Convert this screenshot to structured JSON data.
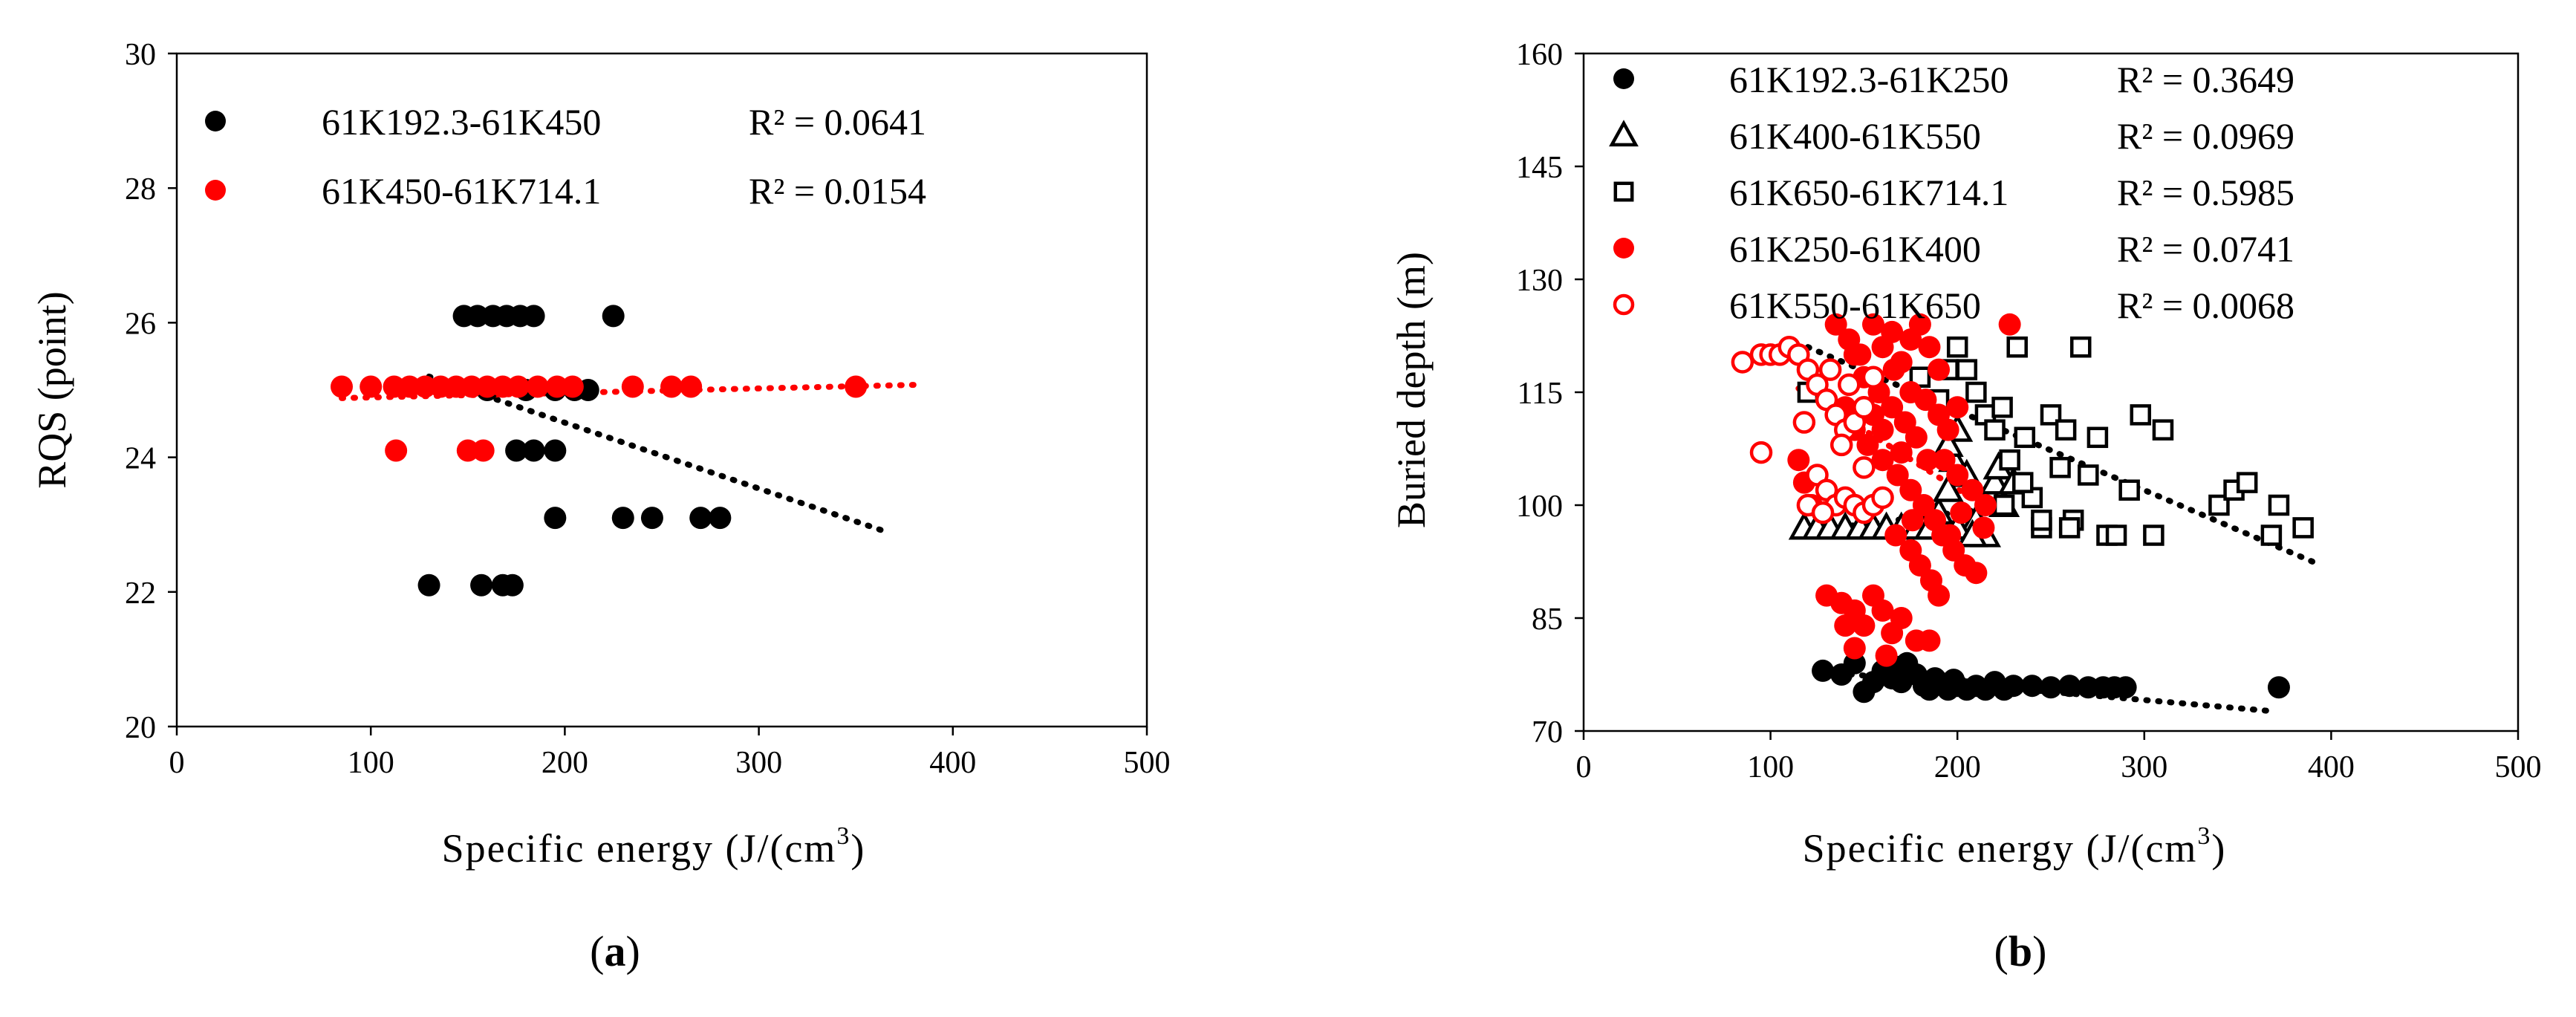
{
  "chart_data": [
    {
      "type": "scatter",
      "panel": "a",
      "caption_label": "a",
      "xlabel": "Specific energy (J/(cm",
      "xlabel_sup": "3",
      "xlabel_close": ")",
      "ylabel": "RQS (point)",
      "xlim": [
        0,
        500
      ],
      "ylim": [
        20,
        30
      ],
      "xticks": [
        0,
        100,
        200,
        300,
        400,
        500
      ],
      "yticks": [
        20,
        22,
        24,
        26,
        28,
        30
      ],
      "legend_position": "top-left",
      "series": [
        {
          "name": "61K192.3-61K450",
          "r2_label": "R² = 0.0641",
          "color": "#000000",
          "marker": "filled-circle",
          "trend": [
            [
              130,
              25.2
            ],
            [
              365,
              22.9
            ]
          ],
          "points": [
            [
              130,
              22.1
            ],
            [
              157,
              22.1
            ],
            [
              168,
              22.1
            ],
            [
              173,
              22.1
            ],
            [
              148,
              26.1
            ],
            [
              155,
              26.1
            ],
            [
              163,
              26.1
            ],
            [
              170,
              26.1
            ],
            [
              177,
              26.1
            ],
            [
              184,
              26.1
            ],
            [
              225,
              26.1
            ],
            [
              160,
              25.0
            ],
            [
              180,
              25.0
            ],
            [
              195,
              25.0
            ],
            [
              205,
              25.0
            ],
            [
              212,
              25.0
            ],
            [
              175,
              24.1
            ],
            [
              184,
              24.1
            ],
            [
              195,
              24.1
            ],
            [
              195,
              23.1
            ],
            [
              230,
              23.1
            ],
            [
              245,
              23.1
            ],
            [
              270,
              23.1
            ],
            [
              280,
              23.1
            ]
          ]
        },
        {
          "name": "61K450-61K714.1",
          "r2_label": "R² = 0.0154",
          "color": "#ff0000",
          "marker": "filled-circle",
          "trend": [
            [
              85,
              24.88
            ],
            [
              385,
              25.08
            ]
          ],
          "points": [
            [
              85,
              25.05
            ],
            [
              100,
              25.05
            ],
            [
              112,
              25.05
            ],
            [
              120,
              25.05
            ],
            [
              128,
              25.05
            ],
            [
              136,
              25.05
            ],
            [
              144,
              25.05
            ],
            [
              152,
              25.05
            ],
            [
              160,
              25.05
            ],
            [
              168,
              25.05
            ],
            [
              176,
              25.05
            ],
            [
              186,
              25.05
            ],
            [
              196,
              25.05
            ],
            [
              204,
              25.05
            ],
            [
              235,
              25.05
            ],
            [
              255,
              25.05
            ],
            [
              265,
              25.05
            ],
            [
              350,
              25.05
            ],
            [
              113,
              24.1
            ],
            [
              150,
              24.1
            ],
            [
              158,
              24.1
            ]
          ]
        }
      ]
    },
    {
      "type": "scatter",
      "panel": "b",
      "caption_label": "b",
      "xlabel": "Specific energy (J/(cm",
      "xlabel_sup": "3",
      "xlabel_close": ")",
      "ylabel": "Buried depth (m)",
      "xlim": [
        0,
        500
      ],
      "ylim": [
        70,
        160
      ],
      "xticks": [
        0,
        100,
        200,
        300,
        400,
        500
      ],
      "yticks": [
        70,
        85,
        100,
        115,
        130,
        145,
        160
      ],
      "legend_position": "top-left",
      "series": [
        {
          "name": "61K192.3-61K250",
          "r2_label": "R² = 0.3649",
          "color": "#000000",
          "marker": "filled-circle",
          "trend": [
            [
              130,
              77.8
            ],
            [
              370,
              72.6
            ]
          ],
          "points": [
            [
              128,
              78
            ],
            [
              138,
              77.5
            ],
            [
              145,
              79
            ],
            [
              150,
              75.2
            ],
            [
              155,
              76.5
            ],
            [
              160,
              78
            ],
            [
              165,
              77
            ],
            [
              170,
              76.5
            ],
            [
              173,
              79
            ],
            [
              178,
              77.5
            ],
            [
              182,
              76
            ],
            [
              185,
              75.5
            ],
            [
              190,
              76.5
            ],
            [
              195,
              75.5
            ],
            [
              200,
              76
            ],
            [
              205,
              75.5
            ],
            [
              210,
              76
            ],
            [
              215,
              75.5
            ],
            [
              220,
              76.5
            ],
            [
              225,
              75.5
            ],
            [
              230,
              76
            ],
            [
              240,
              76
            ],
            [
              250,
              75.8
            ],
            [
              260,
              76
            ],
            [
              270,
              75.8
            ],
            [
              278,
              75.8
            ],
            [
              284,
              75.8
            ],
            [
              290,
              75.8
            ],
            [
              372,
              75.8
            ],
            [
              168,
              78.5
            ],
            [
              188,
              77
            ],
            [
              198,
              76.8
            ]
          ]
        },
        {
          "name": "61K400-61K550",
          "r2_label": "R² = 0.0969",
          "color": "#000000",
          "marker": "open-triangle",
          "trend": [
            [
              118,
              96.5
            ],
            [
              215,
              99.5
            ]
          ],
          "points": [
            [
              118,
              97
            ],
            [
              125,
              97
            ],
            [
              132,
              97
            ],
            [
              140,
              97
            ],
            [
              148,
              97
            ],
            [
              155,
              97
            ],
            [
              162,
              97
            ],
            [
              170,
              97
            ],
            [
              178,
              97
            ],
            [
              185,
              97
            ],
            [
              190,
              99
            ],
            [
              195,
              102
            ],
            [
              198,
              106
            ],
            [
              200,
              110
            ],
            [
              205,
              104
            ],
            [
              210,
              98
            ],
            [
              215,
              96
            ],
            [
              218,
              101
            ],
            [
              220,
              103
            ],
            [
              225,
              100
            ],
            [
              222,
              105
            ],
            [
              230,
              103
            ],
            [
              195,
              108
            ],
            [
              200,
              97
            ],
            [
              208,
              96
            ]
          ]
        },
        {
          "name": "61K650-61K714.1",
          "r2_label": "R² = 0.5985",
          "color": "#000000",
          "marker": "open-square",
          "trend": [
            [
              120,
              121
            ],
            [
              390,
              92.5
            ]
          ],
          "points": [
            [
              120,
              115
            ],
            [
              180,
              117
            ],
            [
              190,
              114
            ],
            [
              195,
              118
            ],
            [
              200,
              121
            ],
            [
              205,
              118
            ],
            [
              210,
              115
            ],
            [
              215,
              112
            ],
            [
              220,
              110
            ],
            [
              224,
              113
            ],
            [
              228,
              106
            ],
            [
              232,
              121
            ],
            [
              236,
              109
            ],
            [
              240,
              101
            ],
            [
              245,
              97
            ],
            [
              250,
              112
            ],
            [
              255,
              105
            ],
            [
              258,
              110
            ],
            [
              262,
              98
            ],
            [
              266,
              121
            ],
            [
              270,
              104
            ],
            [
              275,
              109
            ],
            [
              280,
              96
            ],
            [
              285,
              96
            ],
            [
              292,
              102
            ],
            [
              298,
              112
            ],
            [
              305,
              96
            ],
            [
              310,
              110
            ],
            [
              340,
              100
            ],
            [
              348,
              102
            ],
            [
              355,
              103
            ],
            [
              368,
              96
            ],
            [
              372,
              100
            ],
            [
              385,
              97
            ],
            [
              225,
              100
            ],
            [
              245,
              98
            ],
            [
              260,
              97
            ],
            [
              235,
              103
            ]
          ]
        },
        {
          "name": "61K250-61K400",
          "r2_label": "R² = 0.0741",
          "color": "#ff0000",
          "marker": "filled-circle",
          "trend": [],
          "points": [
            [
              135,
              124
            ],
            [
              142,
              122
            ],
            [
              148,
              120
            ],
            [
              155,
              124
            ],
            [
              160,
              121
            ],
            [
              165,
              123
            ],
            [
              170,
              119
            ],
            [
              175,
              122
            ],
            [
              180,
              124
            ],
            [
              185,
              121
            ],
            [
              190,
              118
            ],
            [
              150,
              117
            ],
            [
              158,
              115
            ],
            [
              165,
              113
            ],
            [
              172,
              111
            ],
            [
              178,
              109
            ],
            [
              184,
              106
            ],
            [
              190,
              112
            ],
            [
              195,
              110
            ],
            [
              200,
              113
            ],
            [
              140,
              113
            ],
            [
              145,
              110
            ],
            [
              152,
              108
            ],
            [
              160,
              106
            ],
            [
              168,
              104
            ],
            [
              175,
              102
            ],
            [
              182,
              100
            ],
            [
              188,
              98
            ],
            [
              192,
              96
            ],
            [
              198,
              94
            ],
            [
              204,
              92
            ],
            [
              210,
              91
            ],
            [
              175,
              94
            ],
            [
              180,
              92
            ],
            [
              186,
              90
            ],
            [
              190,
              88
            ],
            [
              196,
              96
            ],
            [
              202,
              99
            ],
            [
              208,
              102
            ],
            [
              214,
              97
            ],
            [
              130,
              88
            ],
            [
              138,
              87
            ],
            [
              145,
              86
            ],
            [
              150,
              84
            ],
            [
              155,
              88
            ],
            [
              160,
              86
            ],
            [
              165,
              83
            ],
            [
              170,
              85
            ],
            [
              162,
              80
            ],
            [
              178,
              82
            ],
            [
              185,
              82
            ],
            [
              140,
              84
            ],
            [
              145,
              81
            ],
            [
              115,
              106
            ],
            [
              118,
              103
            ],
            [
              122,
              100
            ],
            [
              228,
              124
            ],
            [
              215,
              100
            ],
            [
              200,
              104
            ],
            [
              175,
              115
            ],
            [
              166,
              118
            ],
            [
              160,
              110
            ],
            [
              170,
              107
            ],
            [
              145,
              120
            ],
            [
              155,
              112
            ],
            [
              183,
              114
            ],
            [
              193,
              106
            ],
            [
              176,
              98
            ],
            [
              167,
              96
            ]
          ]
        },
        {
          "name": "61K550-61K650",
          "r2_label": "R² = 0.0068",
          "color": "#ff0000",
          "marker": "open-circle",
          "trend": [
            [
              115,
              115.5
            ],
            [
              220,
              99
            ]
          ],
          "points": [
            [
              85,
              119
            ],
            [
              95,
              120
            ],
            [
              100,
              120
            ],
            [
              105,
              120
            ],
            [
              110,
              121
            ],
            [
              115,
              120
            ],
            [
              120,
              118
            ],
            [
              125,
              116
            ],
            [
              130,
              114
            ],
            [
              135,
              112
            ],
            [
              140,
              110
            ],
            [
              125,
              104
            ],
            [
              130,
              102
            ],
            [
              135,
              100
            ],
            [
              140,
              101
            ],
            [
              145,
              100
            ],
            [
              150,
              99
            ],
            [
              155,
              100
            ],
            [
              160,
              101
            ],
            [
              120,
              100
            ],
            [
              128,
              99
            ],
            [
              95,
              107
            ],
            [
              138,
              108
            ],
            [
              145,
              111
            ],
            [
              150,
              113
            ],
            [
              155,
              117
            ],
            [
              142,
              116
            ],
            [
              132,
              118
            ],
            [
              118,
              111
            ],
            [
              150,
              105
            ]
          ]
        }
      ]
    }
  ]
}
